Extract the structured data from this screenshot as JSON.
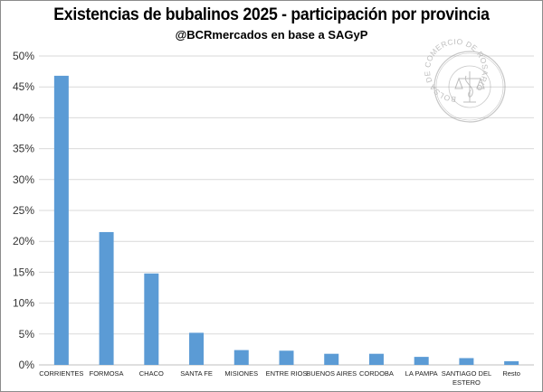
{
  "chart_data": {
    "type": "bar",
    "title": "Existencias de bubalinos 2025 - participación por provincia",
    "subtitle": "@BCRmercados en base a SAGyP",
    "xlabel": "",
    "ylabel": "",
    "ylim": [
      0,
      50
    ],
    "y_tick_labels": [
      "0%",
      "5%",
      "10%",
      "15%",
      "20%",
      "25%",
      "30%",
      "35%",
      "40%",
      "45%",
      "50%"
    ],
    "grid": true,
    "categories": [
      "CORRIENTES",
      "FORMOSA",
      "CHACO",
      "SANTA FE",
      "MISIONES",
      "ENTRE RIOS",
      "BUENOS AIRES",
      "CORDOBA",
      "LA PAMPA",
      "SANTIAGO DEL ESTERO",
      "Resto"
    ],
    "category_lines": [
      [
        "CORRIENTES"
      ],
      [
        "FORMOSA"
      ],
      [
        "CHACO"
      ],
      [
        "SANTA FE"
      ],
      [
        "MISIONES"
      ],
      [
        "ENTRE RIOS"
      ],
      [
        "BUENOS AIRES"
      ],
      [
        "CORDOBA"
      ],
      [
        "LA PAMPA"
      ],
      [
        "SANTIAGO DEL",
        "ESTERO"
      ],
      [
        "Resto"
      ]
    ],
    "values": [
      46.8,
      21.5,
      14.8,
      5.2,
      2.4,
      2.3,
      1.8,
      1.8,
      1.3,
      1.1,
      0.6
    ],
    "unit": "%",
    "bar_color": "#5b9bd5"
  },
  "seal": {
    "text": "BOLSA DE COMERCIO DE ROSARIO"
  }
}
